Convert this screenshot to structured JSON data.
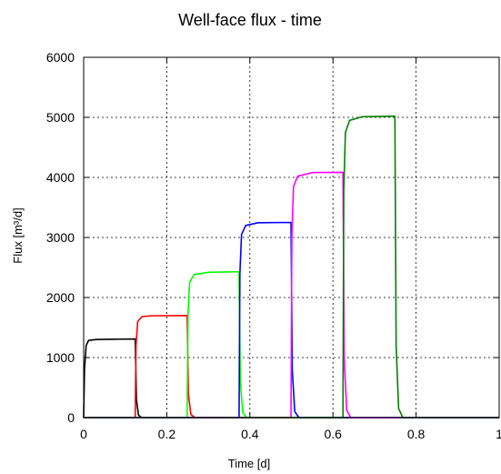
{
  "chart_data": {
    "type": "line",
    "title": "Well-face flux - time",
    "xlabel": "Time [d]",
    "ylabel": "Flux [m³/d]",
    "xlim": [
      0,
      1
    ],
    "ylim": [
      0,
      6000
    ],
    "xticks": [
      0,
      0.2,
      0.4,
      0.6,
      0.8,
      1
    ],
    "xtick_labels": [
      "0",
      "0.2",
      "0.4",
      "0.6",
      "0.8",
      "1"
    ],
    "yticks": [
      0,
      1000,
      2000,
      3000,
      4000,
      5000,
      6000
    ],
    "ytick_labels": [
      "0",
      "1000",
      "2000",
      "3000",
      "4000",
      "5000",
      "6000"
    ],
    "grid": true,
    "legend": "none",
    "series": [
      {
        "color": "#000000",
        "points": [
          [
            0,
            0
          ],
          [
            0.002,
            800
          ],
          [
            0.006,
            1200
          ],
          [
            0.012,
            1285
          ],
          [
            0.03,
            1300
          ],
          [
            0.124,
            1310
          ],
          [
            0.125,
            1000
          ],
          [
            0.127,
            300
          ],
          [
            0.132,
            40
          ],
          [
            0.14,
            0
          ],
          [
            1,
            0
          ]
        ]
      },
      {
        "color": "#ff0000",
        "points": [
          [
            0,
            0
          ],
          [
            0.124,
            0
          ],
          [
            0.126,
            1200
          ],
          [
            0.13,
            1600
          ],
          [
            0.14,
            1680
          ],
          [
            0.16,
            1695
          ],
          [
            0.249,
            1700
          ],
          [
            0.25,
            1300
          ],
          [
            0.252,
            400
          ],
          [
            0.258,
            50
          ],
          [
            0.268,
            0
          ],
          [
            1,
            0
          ]
        ]
      },
      {
        "color": "#00ff00",
        "points": [
          [
            0,
            0
          ],
          [
            0.249,
            0
          ],
          [
            0.251,
            1700
          ],
          [
            0.255,
            2250
          ],
          [
            0.265,
            2380
          ],
          [
            0.3,
            2420
          ],
          [
            0.374,
            2430
          ],
          [
            0.375,
            1800
          ],
          [
            0.377,
            600
          ],
          [
            0.383,
            80
          ],
          [
            0.393,
            0
          ],
          [
            1,
            0
          ]
        ]
      },
      {
        "color": "#0000ff",
        "points": [
          [
            0,
            0
          ],
          [
            0.374,
            0
          ],
          [
            0.376,
            2400
          ],
          [
            0.38,
            3050
          ],
          [
            0.39,
            3200
          ],
          [
            0.42,
            3245
          ],
          [
            0.499,
            3250
          ],
          [
            0.5,
            2500
          ],
          [
            0.502,
            800
          ],
          [
            0.508,
            100
          ],
          [
            0.518,
            0
          ],
          [
            1,
            0
          ]
        ]
      },
      {
        "color": "#ff00ff",
        "points": [
          [
            0,
            0
          ],
          [
            0.499,
            0
          ],
          [
            0.501,
            3000
          ],
          [
            0.505,
            3850
          ],
          [
            0.515,
            4020
          ],
          [
            0.55,
            4080
          ],
          [
            0.624,
            4085
          ],
          [
            0.625,
            3100
          ],
          [
            0.627,
            1000
          ],
          [
            0.633,
            120
          ],
          [
            0.643,
            0
          ],
          [
            1,
            0
          ]
        ]
      },
      {
        "color": "#008000",
        "points": [
          [
            0,
            0
          ],
          [
            0.624,
            0
          ],
          [
            0.626,
            3800
          ],
          [
            0.63,
            4750
          ],
          [
            0.64,
            4950
          ],
          [
            0.67,
            5010
          ],
          [
            0.749,
            5020
          ],
          [
            0.75,
            3800
          ],
          [
            0.752,
            1200
          ],
          [
            0.758,
            150
          ],
          [
            0.768,
            0
          ],
          [
            1,
            0
          ]
        ]
      }
    ]
  }
}
